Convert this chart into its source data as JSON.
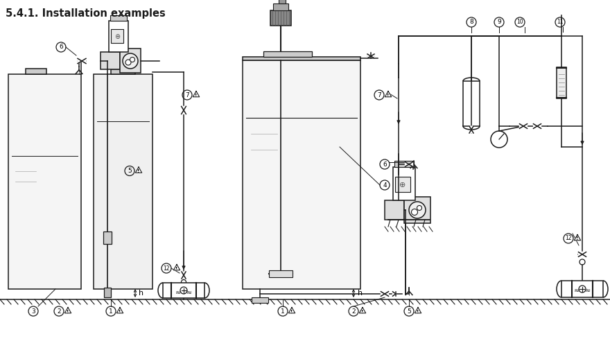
{
  "title": "5.4.1. Installation examples",
  "bg_color": "#ffffff",
  "line_color": "#1a1a1a",
  "line_width": 1.1,
  "title_fontsize": 10.5,
  "fig_width": 8.8,
  "fig_height": 4.92,
  "dpi": 100
}
